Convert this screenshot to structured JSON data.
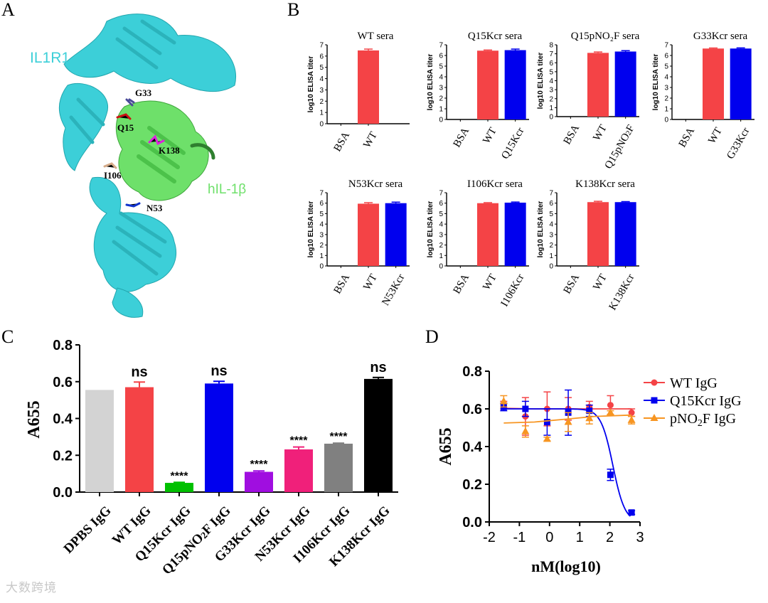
{
  "panels": {
    "a": {
      "letter": "A",
      "protein_labels": [
        "IL1R1",
        "hIL-1β"
      ],
      "residue_labels": [
        "G33",
        "Q15",
        "K138",
        "I106",
        "N53"
      ]
    },
    "b": {
      "letter": "B"
    },
    "c": {
      "letter": "C"
    },
    "d": {
      "letter": "D"
    }
  },
  "colors": {
    "wt": "#f44346",
    "mutant": "#0000ee",
    "dpbs": "#d3d3d3",
    "green": "#00c000",
    "purple": "#a00ee0",
    "pink": "#f0207a",
    "grey": "#808080",
    "black": "#000000",
    "orange": "#f79521",
    "cyan": "#3ccfd8",
    "ligand_green": "#6ee06a"
  },
  "watermark": "大数跨境",
  "chart_data": [
    {
      "panel": "B",
      "type": "bar",
      "title": "WT sera",
      "ylabel": "log10 ELISA titer",
      "ylim": [
        0,
        7
      ],
      "yticks": [
        0,
        1,
        2,
        3,
        4,
        5,
        6,
        7
      ],
      "categories": [
        "BSA",
        "WT"
      ],
      "values": [
        0,
        6.5
      ],
      "errors": [
        0,
        0.12
      ]
    },
    {
      "panel": "B",
      "type": "bar",
      "title": "Q15Kcr sera",
      "ylabel": "log10 ELISA titer",
      "ylim": [
        0,
        7
      ],
      "yticks": [
        0,
        1,
        2,
        3,
        4,
        5,
        6,
        7
      ],
      "categories": [
        "BSA",
        "WT",
        "Q15Kcr"
      ],
      "values": [
        0,
        6.45,
        6.5
      ],
      "errors": [
        0,
        0.06,
        0.1
      ]
    },
    {
      "panel": "B",
      "type": "bar",
      "title": "Q15pNO2F sera",
      "ylabel": "log10 ELISA titer",
      "ylim": [
        0,
        8
      ],
      "yticks": [
        0,
        1,
        2,
        3,
        4,
        5,
        6,
        7,
        8
      ],
      "categories": [
        "BSA",
        "WT",
        "Q15pNO2F"
      ],
      "values": [
        0,
        7.1,
        7.25
      ],
      "errors": [
        0,
        0.1,
        0.1
      ]
    },
    {
      "panel": "B",
      "type": "bar",
      "title": "G33Kcr sera",
      "ylabel": "log10 ELISA titer",
      "ylim": [
        0,
        7
      ],
      "yticks": [
        0,
        1,
        2,
        3,
        4,
        5,
        6,
        7
      ],
      "categories": [
        "BSA",
        "WT",
        "G33Kcr"
      ],
      "values": [
        0,
        6.65,
        6.65
      ],
      "errors": [
        0,
        0.05,
        0.06
      ]
    },
    {
      "panel": "B",
      "type": "bar",
      "title": "N53Kcr sera",
      "ylabel": "log10 ELISA titer",
      "ylim": [
        0,
        7
      ],
      "yticks": [
        0,
        1,
        2,
        3,
        4,
        5,
        6,
        7
      ],
      "categories": [
        "BSA",
        "WT",
        "N53Kcr"
      ],
      "values": [
        0,
        5.95,
        6.0
      ],
      "errors": [
        0,
        0.1,
        0.1
      ]
    },
    {
      "panel": "B",
      "type": "bar",
      "title": "I106Kcr sera",
      "ylabel": "log10 ELISA titer",
      "ylim": [
        0,
        7
      ],
      "yticks": [
        0,
        1,
        2,
        3,
        4,
        5,
        6,
        7
      ],
      "categories": [
        "BSA",
        "WT",
        "I106Kcr"
      ],
      "values": [
        0,
        6.0,
        6.05
      ],
      "errors": [
        0,
        0.05,
        0.06
      ]
    },
    {
      "panel": "B",
      "type": "bar",
      "title": "K138Kcr sera",
      "ylabel": "log10 ELISA titer",
      "ylim": [
        0,
        7
      ],
      "yticks": [
        0,
        1,
        2,
        3,
        4,
        5,
        6,
        7
      ],
      "categories": [
        "BSA",
        "WT",
        "K138Kcr"
      ],
      "values": [
        0,
        6.1,
        6.1
      ],
      "errors": [
        0,
        0.08,
        0.05
      ]
    },
    {
      "panel": "C",
      "type": "bar",
      "ylabel": "A655",
      "ylim": [
        0,
        0.8
      ],
      "yticks": [
        "0.0",
        "0.2",
        "0.4",
        "0.6",
        "0.8"
      ],
      "categories": [
        "DPBS IgG",
        "WT  IgG",
        "Q15Kcr  IgG",
        "Q15pNO2F IgG",
        "G33Kcr IgG",
        "N53Kcr IgG",
        "I106Kcr IgG",
        "K138Kcr IgG"
      ],
      "values": [
        0.555,
        0.57,
        0.05,
        0.59,
        0.11,
        0.232,
        0.263,
        0.615
      ],
      "errors": [
        0,
        0.028,
        0.003,
        0.012,
        0.005,
        0.013,
        0.003,
        0.008
      ],
      "annotations": [
        "",
        "ns",
        "****",
        "ns",
        "****",
        "****",
        "****",
        "ns"
      ]
    },
    {
      "panel": "D",
      "type": "scatter",
      "xlabel": "nM(log10)",
      "ylabel": "A655",
      "xlim": [
        -2,
        3
      ],
      "ylim": [
        0,
        0.8
      ],
      "xticks": [
        "-2",
        "-1",
        "0",
        "1",
        "2",
        "3"
      ],
      "yticks": [
        "0.0",
        "0.2",
        "0.4",
        "0.6",
        "0.8"
      ],
      "series": [
        {
          "name": "WT IgG",
          "marker": "circle",
          "x": [
            -1.52,
            -0.8,
            -0.08,
            0.62,
            1.32,
            2.02,
            2.72
          ],
          "y": [
            0.62,
            0.56,
            0.6,
            0.6,
            0.61,
            0.62,
            0.58
          ],
          "err": [
            0.02,
            0.1,
            0.09,
            0.06,
            0.03,
            0.05,
            0.02
          ],
          "fit_y": [
            0.603,
            0.6,
            0.6,
            0.6,
            0.6
          ]
        },
        {
          "name": "Q15Kcr IgG",
          "marker": "square",
          "x": [
            -1.52,
            -0.8,
            -0.08,
            0.62,
            1.32,
            2.02,
            2.72
          ],
          "y": [
            0.61,
            0.6,
            0.53,
            0.58,
            0.59,
            0.25,
            0.05
          ],
          "err": [
            0.02,
            0.04,
            0.07,
            0.12,
            0.03,
            0.03,
            0.01
          ],
          "fit_ic50": 2.1
        },
        {
          "name": "pNO2F IgG",
          "marker": "triangle",
          "x": [
            -1.52,
            -0.8,
            -0.08,
            0.62,
            1.32,
            2.02,
            2.72
          ],
          "y": [
            0.64,
            0.48,
            0.44,
            0.53,
            0.55,
            0.58,
            0.54
          ],
          "err": [
            0.03,
            0.03,
            0.01,
            0.05,
            0.03,
            0.01,
            0.02
          ],
          "fit_y": [
            0.525,
            0.53,
            0.545,
            0.56,
            0.567
          ]
        }
      ]
    }
  ]
}
